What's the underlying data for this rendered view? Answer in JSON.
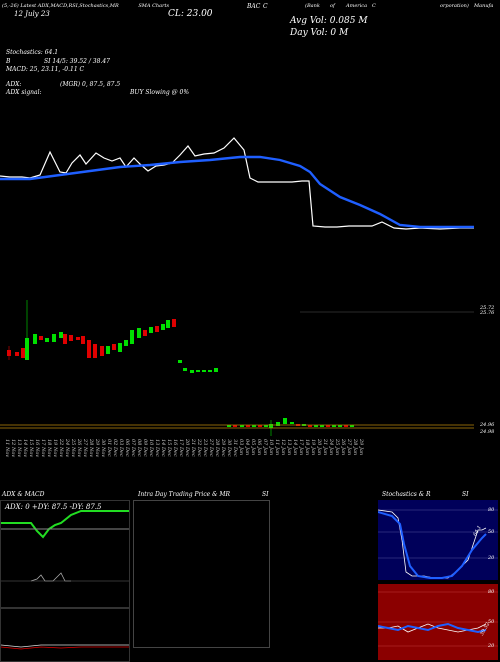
{
  "header": {
    "line1_left": "(5,-26) Latest",
    "line1_indicators": "ADX,MACD,RSI,Stochastics,MR",
    "sma": "SMA",
    "line1_chart": "Charts",
    "ticker": "BAC",
    "line1_c": "C",
    "company_part1": "(Bank",
    "company_part2": "of",
    "company_part3": "America",
    "company_part4": "C",
    "company_part5": "orporation)",
    "company_part6": "Manufa",
    "date_label": "12 July 23",
    "close_label": "CL: 23.00",
    "avg_vol": "Avg Vol: 0.085 M",
    "day_vol": "Day Vol: 0   M"
  },
  "indicators": {
    "stochastics": "Stochastics: 64.1",
    "rsi_b": "B",
    "rsi_line": "SI 14/5: 39.52  /  38.47",
    "macd": "MACD: 25, 23.11,  -0.11 C",
    "adx": "ADX:",
    "adx_value": "(MGR) 0,  87.5,  87.5",
    "adx_signal_label": "ADX  signal:",
    "adx_signal_value": "BUY Slowing @ 0%"
  },
  "price_axis": {
    "upper": "25.72",
    "upper2": "25.76",
    "lower": "24.96",
    "lower2": "24.98"
  },
  "date_ticks": [
    "11 Nov",
    "12 Nov",
    "13 Nov",
    "14 Nov",
    "15 Nov",
    "16 Nov",
    "17 Nov",
    "18 Nov",
    "19 Nov",
    "22 Nov",
    "24 Nov",
    "25 Nov",
    "26 Nov",
    "27 Nov",
    "28 Nov",
    "29 Nov",
    "30 Nov",
    "01 Dec",
    "02 Dec",
    "03 Dec",
    "06 Dec",
    "07 Dec",
    "08 Dec",
    "09 Dec",
    "10 Dec",
    "13 Dec",
    "14 Dec",
    "15 Dec",
    "16 Dec",
    "17 Dec",
    "20 Dec",
    "21 Dec",
    "22 Dec",
    "23 Dec",
    "27 Dec",
    "28 Dec",
    "29 Dec",
    "30 Dec",
    "31 Dec",
    "03 Jan",
    "04 Jan",
    "05 Jan",
    "06 Jan",
    "07 Jan",
    "10 Jan",
    "11 Jan",
    "12 Jan",
    "13 Jan",
    "14 Jan",
    "17 Jan",
    "18 Jan",
    "19 Jan",
    "20 Jan",
    "21 Jan",
    "24 Jan",
    "25 Jan",
    "26 Jan",
    "27 Jan",
    "28 Jan",
    "29 Jan"
  ],
  "panels": {
    "adx_title": "ADX  & MACD",
    "adx_readout": "ADX: 0   +DY: 87.5  -DY: 87.5",
    "intraday_title": "Intra  Day Trading Price  & MR",
    "intraday_si": "SI",
    "stoch_title": "Stochastics & R",
    "stoch_si": "SI",
    "stoch_ticks": [
      "80",
      "50",
      "20"
    ],
    "stoch_value": "64.1",
    "rsi_ticks": [
      "80",
      "50",
      "20"
    ],
    "rsi_value": "39.52"
  },
  "colors": {
    "sma": "#1f5fff",
    "up": "#00e000",
    "down": "#e00000",
    "adx_green": "#22dd22",
    "rsi_bg": "#8b0000",
    "stoch_bg": "#00005a"
  }
}
